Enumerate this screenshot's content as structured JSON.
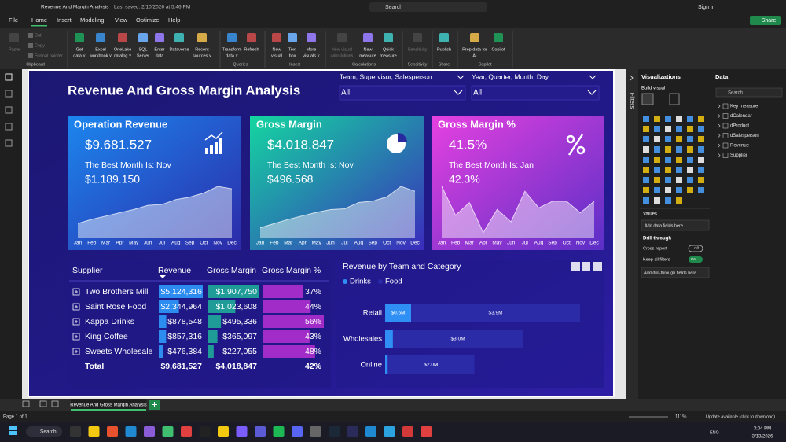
{
  "window": {
    "title": "Revenue And Margin Analysis",
    "saved": "Last saved: 2/10/2026 at 5:46 PM",
    "search": "Search",
    "sign_in": "Sign in"
  },
  "menu": {
    "tabs": [
      "File",
      "Home",
      "Insert",
      "Modeling",
      "View",
      "Optimize",
      "Help"
    ],
    "active": "Home",
    "share": "Share"
  },
  "ribbon": {
    "groups": [
      {
        "label": "Clipboard",
        "buttons": [
          {
            "lines": [
              "Paste"
            ],
            "enabled": false
          },
          {
            "lines": [
              "Cut"
            ],
            "enabled": false
          },
          {
            "lines": [
              "Copy"
            ],
            "enabled": false
          },
          {
            "lines": [
              "Format painter"
            ],
            "enabled": false
          }
        ]
      },
      {
        "buttons": [
          {
            "lines": [
              "Get",
              "data ˅"
            ]
          },
          {
            "lines": [
              "Excel",
              "workbook ˅"
            ]
          },
          {
            "lines": [
              "OneLake",
              "catalog ˅"
            ]
          },
          {
            "lines": [
              "SQL",
              "Server"
            ]
          },
          {
            "lines": [
              "Enter",
              "data"
            ]
          },
          {
            "lines": [
              "Dataverse"
            ]
          },
          {
            "lines": [
              "Recent",
              "sources ˅"
            ]
          }
        ]
      },
      {
        "label": "Queries",
        "buttons": [
          {
            "lines": [
              "Transform",
              "data ˅"
            ]
          },
          {
            "lines": [
              "Refresh"
            ]
          }
        ]
      },
      {
        "label": "Insert",
        "buttons": [
          {
            "lines": [
              "New",
              "visual"
            ]
          },
          {
            "lines": [
              "Text",
              "box"
            ]
          },
          {
            "lines": [
              "More",
              "visuals ˅"
            ]
          }
        ]
      },
      {
        "label": "Calculations",
        "buttons": [
          {
            "lines": [
              "New visual",
              "calculations"
            ],
            "enabled": false
          },
          {
            "lines": [
              "New",
              "measure"
            ]
          },
          {
            "lines": [
              "Quick",
              "measure"
            ]
          }
        ]
      },
      {
        "label": "Sensitivity",
        "buttons": [
          {
            "lines": [
              "Sensitivity"
            ],
            "enabled": false
          }
        ]
      },
      {
        "label": "Share",
        "buttons": [
          {
            "lines": [
              "Publish"
            ]
          }
        ]
      },
      {
        "label": "Copilot",
        "buttons": [
          {
            "lines": [
              "Prep data for",
              "AI"
            ]
          },
          {
            "lines": [
              "Copilot"
            ]
          }
        ]
      }
    ]
  },
  "report": {
    "title": "Revenue And Gross Margin Analysis",
    "slicers": [
      {
        "label": "Team, Supervisor, Salesperson",
        "value": "All"
      },
      {
        "label": "Year, Quarter, Month, Day",
        "value": "All"
      }
    ],
    "cards": [
      {
        "title": "Operation Revenue",
        "value": "$9.681.527",
        "best_month": "The Best Month Is: Nov",
        "best_value": "$1.189.150",
        "chart": {
          "type": "area",
          "categories": [
            "Jan",
            "Feb",
            "Mar",
            "Apr",
            "May",
            "Jun",
            "Jul",
            "Aug",
            "Sep",
            "Oct",
            "Nov",
            "Dec"
          ],
          "values": [
            340000,
            434000,
            510000,
            585000,
            660000,
            755000,
            774000,
            887000,
            944000,
            1038000,
            1189150,
            1132000
          ]
        }
      },
      {
        "title": "Gross Margin",
        "value": "$4.018.847",
        "best_month": "The Best Month Is: Nov",
        "best_value": "$496.568",
        "chart": {
          "type": "area",
          "categories": [
            "Jan",
            "Feb",
            "Mar",
            "Apr",
            "May",
            "Jun",
            "Jul",
            "Aug",
            "Sep",
            "Oct",
            "Nov",
            "Dec"
          ],
          "values": [
            100650,
            141000,
            181000,
            215000,
            248000,
            275000,
            282000,
            342000,
            356000,
            396000,
            496568,
            450000
          ]
        }
      },
      {
        "title": "Gross Margin %",
        "value": "41.5%",
        "best_month": "The Best Month Is: Jan",
        "best_value": "42.3%",
        "chart": {
          "type": "area",
          "categories": [
            "Jan",
            "Feb",
            "Mar",
            "Apr",
            "May",
            "Jun",
            "Jul",
            "Aug",
            "Sep",
            "Oct",
            "Nov",
            "Dec"
          ],
          "values": [
            42.3,
            18.8,
            29,
            4.7,
            23.5,
            13.4,
            38.3,
            24.8,
            30.2,
            30.2,
            20.8,
            30.2
          ]
        }
      }
    ],
    "table": {
      "columns": [
        "Supplier",
        "Revenue",
        "Gross Margin",
        "Gross Margin %"
      ],
      "colors": [
        "#2d8cf0",
        "#1f9c98",
        "#a22cc8"
      ],
      "rows": [
        {
          "name": "Two Brothers Mill",
          "values": [
            5124316,
            1907750,
            37
          ],
          "value_labels": [
            "$5,124,316",
            "$1,907,750",
            "37%"
          ]
        },
        {
          "name": "Saint Rose Food",
          "values": [
            2344964,
            1023608,
            44
          ],
          "value_labels": [
            "$2,344,964",
            "$1,023,608",
            "44%"
          ]
        },
        {
          "name": "Kappa Drinks",
          "values": [
            878548,
            495336,
            56
          ],
          "value_labels": [
            "$878,548",
            "$495,336",
            "56%"
          ]
        },
        {
          "name": "King Coffee",
          "values": [
            857316,
            365097,
            43
          ],
          "value_labels": [
            "$857,316",
            "$365,097",
            "43%"
          ]
        },
        {
          "name": "Sweets Wholesale",
          "values": [
            476384,
            227055,
            48
          ],
          "value_labels": [
            "$476,384",
            "$227,055",
            "48%"
          ]
        }
      ],
      "total": {
        "name": "Total",
        "value_labels": [
          "$9,681,527",
          "$4,018,847",
          "42%"
        ]
      }
    },
    "bar_chart": {
      "type": "bar",
      "orientation": "horizontal",
      "stacked": true,
      "title": "Revenue by Team and Category",
      "categories": [
        "Retail",
        "Wholesales",
        "Online"
      ],
      "series": [
        {
          "name": "Drinks",
          "color": "#2f8ff5",
          "values": [
            0.6,
            0.18,
            0.06
          ],
          "value_labels": [
            "$0.6M",
            null,
            null
          ]
        },
        {
          "name": "Food",
          "color": "#2b2ba8",
          "values": [
            3.9,
            3.0,
            2.0
          ],
          "value_labels": [
            "$3.9M",
            "$3.0M",
            "$2.0M"
          ]
        }
      ]
    }
  },
  "filters_pane": {
    "title": "Filters"
  },
  "visualizations_pane": {
    "title": "Visualizations",
    "build": "Build visual",
    "values": "Values",
    "values_well": "Add data fields here",
    "drill": "Drill through",
    "cross_report": "Cross-report",
    "cross_report_state": "Off",
    "keep_filters": "Keep all filters",
    "keep_filters_state": "On",
    "drill_well": "Add drill-through fields here"
  },
  "data_pane": {
    "title": "Data",
    "search": "Search",
    "items": [
      "Key measure",
      "dCalendar",
      "dProduct",
      "dSalesperson",
      "Revenue",
      "Supplier"
    ]
  },
  "page_tabs": {
    "tabs": [
      "Revenue And Gross Margin Analysis"
    ]
  },
  "status_bar": {
    "page": "Page 1 of 1",
    "zoom": "111%",
    "update": "Update available (click to download)"
  },
  "taskbar": {
    "search": "Search",
    "language": "ENG",
    "time": "3:04 PM",
    "date": "3/13/2026"
  }
}
